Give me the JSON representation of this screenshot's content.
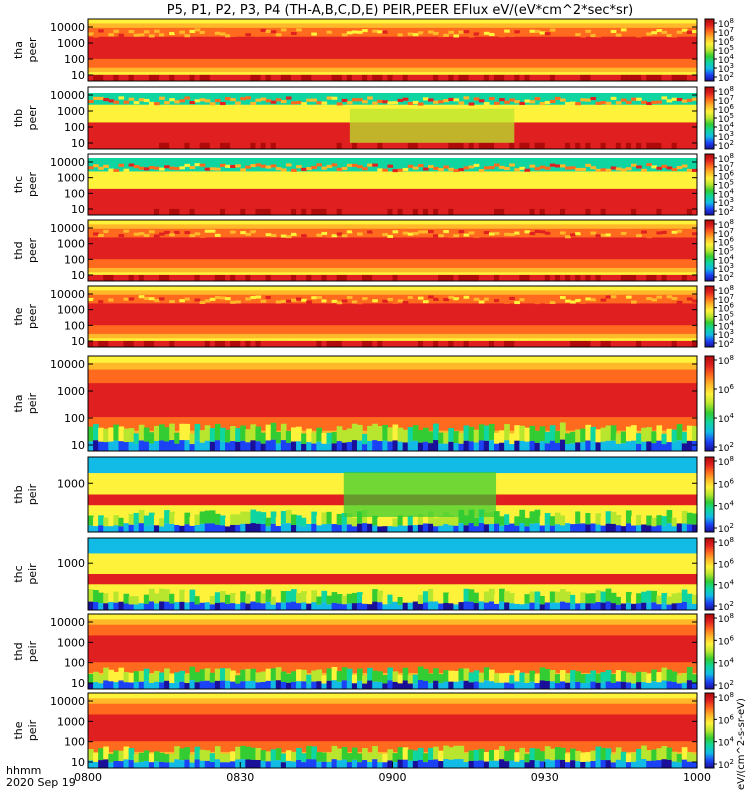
{
  "title": "P5, P1, P2, P3, P4 (TH-A,B,C,D,E) PEIR,PEER EFlux eV/(eV*cm^2*sec*sr)",
  "time_axis": {
    "label_line1": "hhmm",
    "label_line2": "2020 Sep 19",
    "ticks": [
      "0800",
      "0830",
      "0900",
      "0930",
      "1000"
    ],
    "range": [
      "08:00",
      "10:00"
    ]
  },
  "colorbar": {
    "label": "eV/(cm^2-s-sr-eV)",
    "scale": "log",
    "colors": [
      "#1a0f99",
      "#1b43f5",
      "#12bbe6",
      "#0fd6a0",
      "#33cc33",
      "#b8e62e",
      "#fff23a",
      "#ffb82a",
      "#ff6a1e",
      "#e02020",
      "#b00a0a"
    ]
  },
  "chart_data": [
    {
      "type": "heatmap",
      "name": "tha peer",
      "y_scale": "log",
      "y_ticks": [
        "10000",
        "1000",
        "100",
        "10"
      ],
      "colorbar_ticks": [
        "10^8",
        "10^7",
        "10^6",
        "10^5",
        "10^4",
        "10^3",
        "10^2"
      ]
    },
    {
      "type": "heatmap",
      "name": "thb peer",
      "y_scale": "log",
      "y_ticks": [
        "10000",
        "1000",
        "100",
        "10"
      ],
      "colorbar_ticks": [
        "10^8",
        "10^7",
        "10^6",
        "10^5",
        "10^4",
        "10^3",
        "10^2"
      ]
    },
    {
      "type": "heatmap",
      "name": "thc peer",
      "y_scale": "log",
      "y_ticks": [
        "10000",
        "1000",
        "100",
        "10"
      ],
      "colorbar_ticks": [
        "10^8",
        "10^7",
        "10^6",
        "10^5",
        "10^4",
        "10^3",
        "10^2"
      ]
    },
    {
      "type": "heatmap",
      "name": "thd peer",
      "y_scale": "log",
      "y_ticks": [
        "10000",
        "1000",
        "100",
        "10"
      ],
      "colorbar_ticks": [
        "10^8",
        "10^7",
        "10^6",
        "10^5",
        "10^4",
        "10^3",
        "10^2"
      ]
    },
    {
      "type": "heatmap",
      "name": "the peer",
      "y_scale": "log",
      "y_ticks": [
        "10000",
        "1000",
        "100",
        "10"
      ],
      "colorbar_ticks": [
        "10^8",
        "10^7",
        "10^6",
        "10^5",
        "10^4",
        "10^3",
        "10^2"
      ]
    },
    {
      "type": "heatmap",
      "name": "tha peir",
      "y_scale": "log",
      "y_ticks": [
        "10000",
        "1000",
        "100",
        "10"
      ],
      "colorbar_ticks": [
        "10^8",
        "10^6",
        "10^4",
        "10^2"
      ]
    },
    {
      "type": "heatmap",
      "name": "thb peir",
      "y_scale": "log",
      "y_ticks": [
        "1000"
      ],
      "colorbar_ticks": [
        "10^8",
        "10^6",
        "10^4",
        "10^2"
      ]
    },
    {
      "type": "heatmap",
      "name": "thc peir",
      "y_scale": "log",
      "y_ticks": [
        "1000"
      ],
      "colorbar_ticks": [
        "10^8",
        "10^6",
        "10^4",
        "10^2"
      ]
    },
    {
      "type": "heatmap",
      "name": "thd peir",
      "y_scale": "log",
      "y_ticks": [
        "10000",
        "1000",
        "100",
        "10"
      ],
      "colorbar_ticks": [
        "10^8",
        "10^6",
        "10^4",
        "10^2"
      ]
    },
    {
      "type": "heatmap",
      "name": "the peir",
      "y_scale": "log",
      "y_ticks": [
        "10000",
        "1000",
        "100",
        "10"
      ],
      "colorbar_ticks": [
        "10^8",
        "10^6",
        "10^4",
        "10^2"
      ]
    }
  ]
}
